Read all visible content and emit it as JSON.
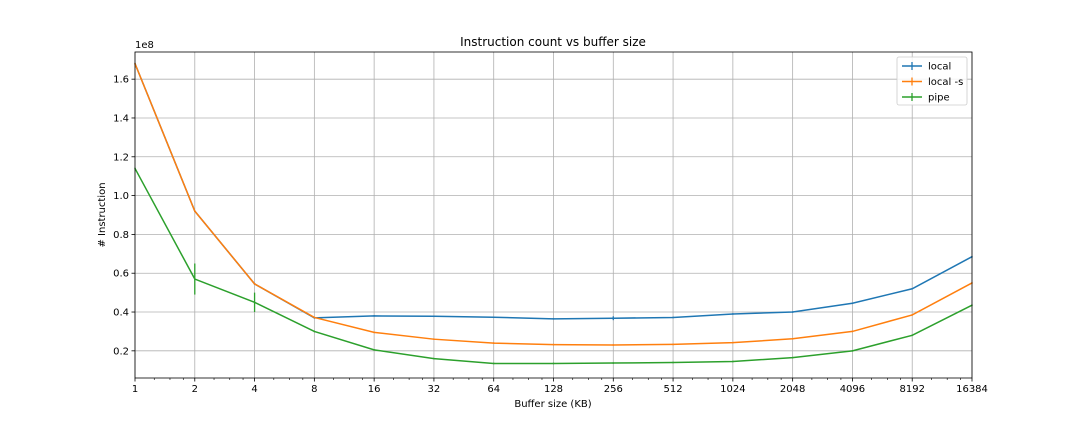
{
  "chart_data": {
    "type": "line",
    "title": "Instruction count vs buffer size",
    "xlabel": "Buffer size (KB)",
    "ylabel": "# Instruction",
    "y_offset_label": "1e8",
    "x_scale": "log2",
    "x": [
      1,
      2,
      4,
      8,
      16,
      32,
      64,
      128,
      256,
      512,
      1024,
      2048,
      4096,
      8192,
      16384
    ],
    "x_tick_labels": [
      "1",
      "2",
      "4",
      "8",
      "16",
      "32",
      "64",
      "128",
      "256",
      "512",
      "1024",
      "2048",
      "4096",
      "8192",
      "16384"
    ],
    "y_ticks": [
      0.2,
      0.4,
      0.6,
      0.8,
      1.0,
      1.2,
      1.4,
      1.6
    ],
    "y_tick_labels": [
      "0.2",
      "0.4",
      "0.6",
      "0.8",
      "1.0",
      "1.2",
      "1.4",
      "1.6"
    ],
    "ylim": [
      0.06,
      1.74
    ],
    "grid": true,
    "legend_position": "top-right",
    "series": [
      {
        "name": "local",
        "color": "#1f77b4",
        "values": [
          1.68,
          0.92,
          0.545,
          0.37,
          0.38,
          0.378,
          0.373,
          0.365,
          0.368,
          0.372,
          0.39,
          0.4,
          0.445,
          0.52,
          0.685
        ],
        "errors": [
          0,
          0,
          0,
          0,
          0,
          0,
          0,
          0,
          0.01,
          0,
          0,
          0,
          0,
          0,
          0
        ]
      },
      {
        "name": "local -s",
        "color": "#ff7f0e",
        "values": [
          1.68,
          0.92,
          0.545,
          0.372,
          0.295,
          0.26,
          0.24,
          0.232,
          0.23,
          0.233,
          0.242,
          0.262,
          0.3,
          0.385,
          0.55
        ],
        "errors": [
          0,
          0,
          0,
          0,
          0,
          0,
          0,
          0,
          0,
          0,
          0,
          0,
          0,
          0,
          0
        ]
      },
      {
        "name": "pipe",
        "color": "#2ca02c",
        "values": [
          1.14,
          0.57,
          0.45,
          0.3,
          0.205,
          0.16,
          0.135,
          0.135,
          0.137,
          0.14,
          0.145,
          0.165,
          0.2,
          0.28,
          0.435
        ],
        "errors": [
          0,
          0.08,
          0.05,
          0,
          0,
          0,
          0,
          0,
          0,
          0,
          0,
          0,
          0,
          0,
          0
        ]
      }
    ]
  }
}
